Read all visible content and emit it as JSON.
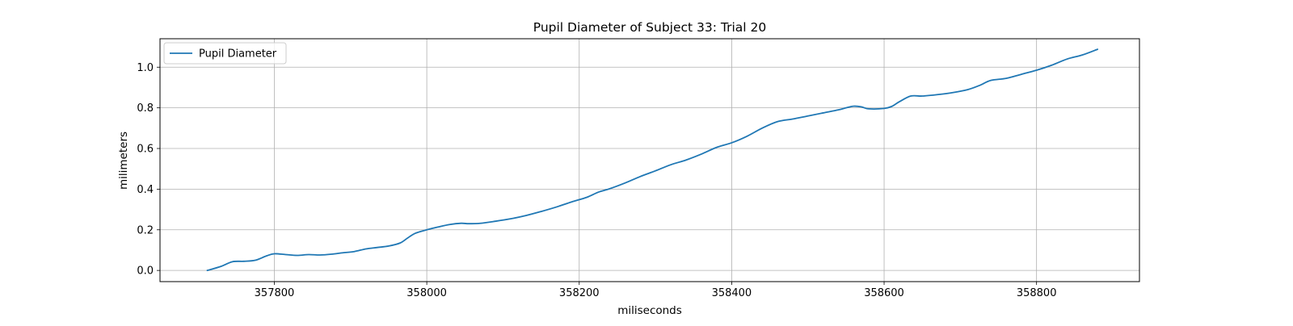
{
  "chart_data": {
    "type": "line",
    "title": "Pupil Diameter of Subject 33: Trial 20",
    "xlabel": "miliseconds",
    "ylabel": "milimeters",
    "xlim": [
      357650,
      358935
    ],
    "ylim": [
      -0.055,
      1.14
    ],
    "xticks": [
      357800,
      358000,
      358200,
      358400,
      358600,
      358800
    ],
    "yticks": [
      0.0,
      0.2,
      0.4,
      0.6,
      0.8,
      1.0
    ],
    "xtick_labels": [
      "357800",
      "358000",
      "358200",
      "358400",
      "358600",
      "358800"
    ],
    "ytick_labels": [
      "0.0",
      "0.2",
      "0.4",
      "0.6",
      "0.8",
      "1.0"
    ],
    "grid": true,
    "legend_position": "top-left",
    "series": [
      {
        "name": "Pupil Diameter",
        "color": "#1f77b4",
        "x": [
          357712,
          357730,
          357745,
          357760,
          357775,
          357790,
          357800,
          357815,
          357830,
          357845,
          357860,
          357875,
          357890,
          357905,
          357920,
          357935,
          357950,
          357965,
          357975,
          357985,
          358000,
          358015,
          358030,
          358045,
          358055,
          358070,
          358090,
          358110,
          358130,
          358150,
          358170,
          358190,
          358210,
          358225,
          358240,
          358260,
          358280,
          358300,
          358320,
          358340,
          358360,
          358380,
          358400,
          358420,
          358440,
          358460,
          358480,
          358500,
          358520,
          358540,
          358550,
          358560,
          358570,
          358580,
          358600,
          358610,
          358620,
          358635,
          358650,
          358670,
          358690,
          358710,
          358725,
          358740,
          358760,
          358780,
          358800,
          358820,
          358840,
          358860,
          358880
        ],
        "y": [
          0.0,
          0.02,
          0.043,
          0.045,
          0.05,
          0.072,
          0.082,
          0.078,
          0.074,
          0.078,
          0.076,
          0.08,
          0.087,
          0.093,
          0.106,
          0.113,
          0.12,
          0.135,
          0.16,
          0.183,
          0.2,
          0.214,
          0.226,
          0.232,
          0.23,
          0.232,
          0.242,
          0.254,
          0.27,
          0.29,
          0.312,
          0.337,
          0.36,
          0.385,
          0.402,
          0.43,
          0.462,
          0.49,
          0.52,
          0.543,
          0.572,
          0.605,
          0.628,
          0.66,
          0.7,
          0.732,
          0.745,
          0.76,
          0.775,
          0.79,
          0.8,
          0.808,
          0.805,
          0.795,
          0.797,
          0.807,
          0.83,
          0.858,
          0.858,
          0.865,
          0.875,
          0.89,
          0.91,
          0.935,
          0.945,
          0.965,
          0.985,
          1.01,
          1.04,
          1.06,
          1.088
        ]
      }
    ]
  }
}
